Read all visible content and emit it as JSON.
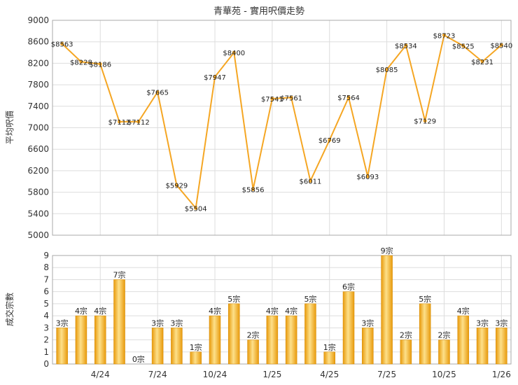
{
  "chart_data": [
    {
      "type": "line",
      "title": "青華苑 - 實用呎價走勢",
      "ylabel": "平均呎價",
      "ylim": [
        5000,
        9000
      ],
      "yticks": [
        5000,
        5400,
        5800,
        6200,
        6600,
        7000,
        7400,
        7800,
        8200,
        8600,
        9000
      ],
      "grid": true,
      "color": "#f5a623",
      "values": [
        8563,
        8228,
        8186,
        7112,
        7112,
        7665,
        5929,
        5504,
        7947,
        8400,
        5856,
        7541,
        7561,
        6011,
        6769,
        7564,
        6093,
        8085,
        8534,
        7129,
        8723,
        8525,
        8231,
        8540
      ],
      "data_labels": [
        "$8563",
        "$8228",
        "$8186",
        "$7112",
        "$7112",
        "$7665",
        "$5929",
        "$5504",
        "$7947",
        "$8400",
        "$5856",
        "$7541",
        "$7561",
        "$6011",
        "$6769",
        "$7564",
        "$6093",
        "$8085",
        "$8534",
        "$7129",
        "$8723",
        "$8525",
        "$8231",
        "$8540"
      ]
    },
    {
      "type": "bar",
      "ylabel": "成交宗數",
      "ylim": [
        0,
        9
      ],
      "yticks": [
        0,
        1,
        2,
        3,
        4,
        5,
        6,
        7,
        8,
        9
      ],
      "grid": true,
      "color": "#f5a623",
      "values": [
        3,
        4,
        4,
        7,
        0,
        3,
        3,
        1,
        4,
        5,
        2,
        4,
        4,
        5,
        1,
        6,
        3,
        9,
        2,
        5,
        2,
        4,
        3,
        3
      ],
      "data_labels": [
        "3宗",
        "4宗",
        "4宗",
        "7宗",
        "0宗",
        "3宗",
        "3宗",
        "1宗",
        "4宗",
        "5宗",
        "2宗",
        "4宗",
        "4宗",
        "5宗",
        "1宗",
        "6宗",
        "3宗",
        "9宗",
        "2宗",
        "5宗",
        "2宗",
        "4宗",
        "3宗",
        "3宗"
      ],
      "x_tick_labels": [
        {
          "index": 2,
          "label": "4/24"
        },
        {
          "index": 5,
          "label": "7/24"
        },
        {
          "index": 8,
          "label": "10/24"
        },
        {
          "index": 11,
          "label": "1/25"
        },
        {
          "index": 14,
          "label": "4/25"
        },
        {
          "index": 17,
          "label": "7/25"
        },
        {
          "index": 20,
          "label": "10/25"
        },
        {
          "index": 23,
          "label": "1/26"
        }
      ]
    }
  ]
}
